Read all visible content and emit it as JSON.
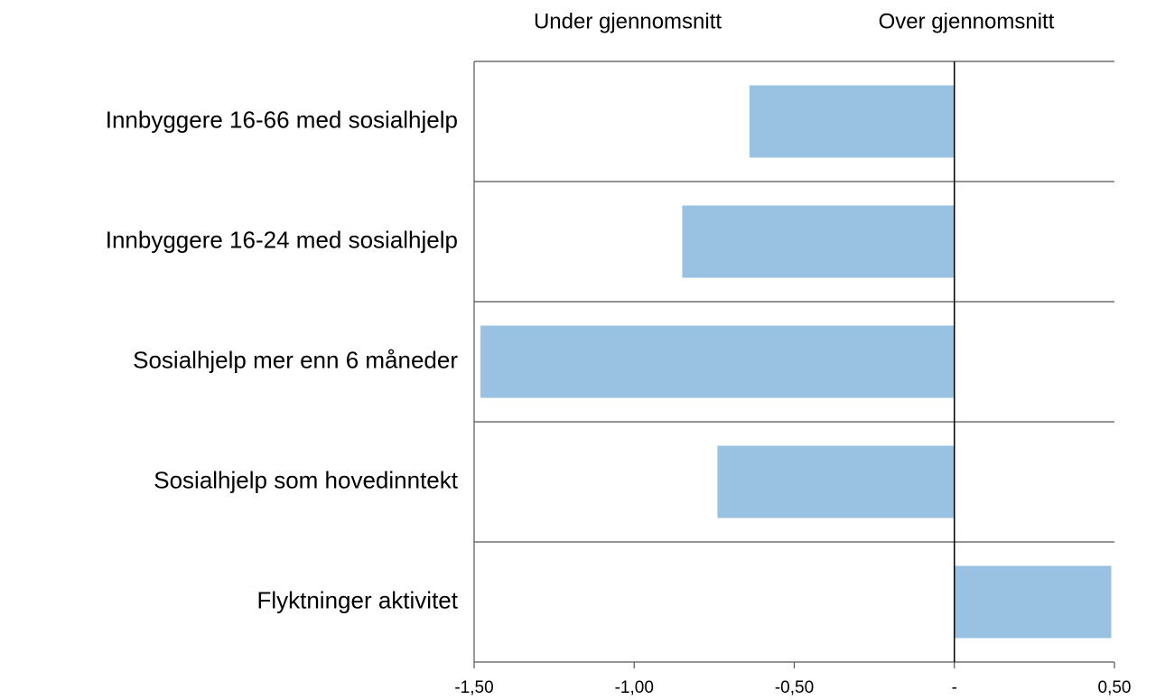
{
  "chart_data": {
    "type": "bar",
    "orientation": "horizontal",
    "annotations": [
      "Under gjennomsnitt",
      "Over gjennomsnitt"
    ],
    "categories": [
      "Innbyggere 16-66 med sosialhjelp",
      "Innbyggere 16-24 med sosialhjelp",
      "Sosialhjelp mer enn 6 måneder",
      "Sosialhjelp som hovedinntekt",
      "Flyktninger aktivitet"
    ],
    "values": [
      -0.64,
      -0.85,
      -1.48,
      -0.74,
      0.49
    ],
    "color": "#98c1e2",
    "xlim": [
      -1.5,
      0.5
    ],
    "xticks": [
      {
        "value": -1.5,
        "label": "-1,50"
      },
      {
        "value": -1,
        "label": "-1,00"
      },
      {
        "value": -0.5,
        "label": "-0,50"
      },
      {
        "value": 0,
        "label": "-"
      },
      {
        "value": 0.5,
        "label": "0,50"
      }
    ]
  }
}
